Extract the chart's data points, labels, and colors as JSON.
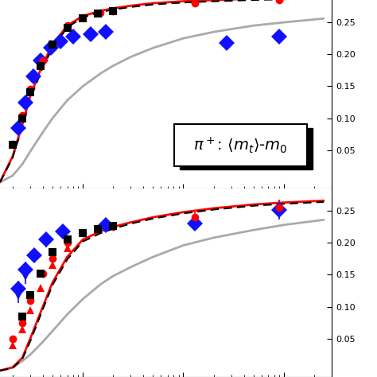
{
  "fig_width": 4.74,
  "fig_height": 4.74,
  "dpi": 100,
  "bg_color": "#ffffff",
  "top_panel": {
    "xmin": 1.5,
    "xmax": 3000,
    "ymin": -0.01,
    "ymax": 0.285,
    "gray_curve": {
      "x": [
        1.5,
        2.0,
        2.5,
        3.0,
        4.0,
        5.0,
        7.0,
        10.0,
        15.0,
        20.0,
        30.0,
        50.0,
        100.0,
        200.0,
        500.0,
        1000.0,
        2500.0
      ],
      "y": [
        0.0,
        0.01,
        0.028,
        0.048,
        0.078,
        0.1,
        0.128,
        0.15,
        0.17,
        0.182,
        0.196,
        0.21,
        0.225,
        0.235,
        0.245,
        0.25,
        0.256
      ]
    },
    "red_curve": {
      "x": [
        1.5,
        2.0,
        2.5,
        3.0,
        4.0,
        5.0,
        7.0,
        10.0,
        15.0,
        20.0,
        30.0,
        50.0,
        100.0,
        200.0,
        500.0,
        1000.0,
        2500.0
      ],
      "y": [
        0.0,
        0.04,
        0.09,
        0.135,
        0.185,
        0.215,
        0.245,
        0.26,
        0.268,
        0.272,
        0.276,
        0.28,
        0.283,
        0.285,
        0.287,
        0.288,
        0.29
      ]
    },
    "black_dashed_curve": {
      "x": [
        1.5,
        2.0,
        2.5,
        3.0,
        4.0,
        5.0,
        7.0,
        10.0,
        15.0,
        20.0,
        30.0,
        50.0,
        100.0,
        200.0,
        500.0,
        1000.0,
        2500.0
      ],
      "y": [
        0.0,
        0.038,
        0.086,
        0.13,
        0.18,
        0.21,
        0.242,
        0.258,
        0.266,
        0.27,
        0.274,
        0.278,
        0.281,
        0.283,
        0.285,
        0.286,
        0.288
      ]
    },
    "blue_diamonds": {
      "x": [
        2.3,
        2.7,
        3.2,
        3.8,
        4.8,
        6.0,
        8.0,
        12.0,
        17.0,
        270.0,
        900.0
      ],
      "y": [
        0.085,
        0.125,
        0.165,
        0.19,
        0.21,
        0.22,
        0.228,
        0.232,
        0.235,
        0.218,
        0.228
      ],
      "yerr": [
        0.0,
        0.0,
        0.0,
        0.0,
        0.0,
        0.0,
        0.0,
        0.0,
        0.0,
        0.01,
        0.01
      ]
    },
    "red_circles": {
      "x": [
        2.0,
        2.5,
        3.0,
        4.0,
        5.0,
        7.0,
        10.0,
        15.0,
        20.0,
        130.0,
        900.0
      ],
      "y": [
        0.06,
        0.105,
        0.145,
        0.19,
        0.215,
        0.245,
        0.258,
        0.265,
        0.268,
        0.28,
        0.285
      ],
      "yerr": [
        0.0,
        0.0,
        0.0,
        0.0,
        0.0,
        0.0,
        0.0,
        0.0,
        0.0,
        0.0,
        0.0
      ]
    },
    "black_squares": {
      "x": [
        2.0,
        2.5,
        3.0,
        3.8,
        5.0,
        7.0,
        10.0,
        14.0,
        20.0
      ],
      "y": [
        0.058,
        0.1,
        0.14,
        0.182,
        0.215,
        0.242,
        0.256,
        0.264,
        0.268
      ],
      "yerr": [
        0.0,
        0.0,
        0.0,
        0.0,
        0.0,
        0.0,
        0.0,
        0.0,
        0.0
      ]
    }
  },
  "bottom_panel": {
    "xmin": 1.5,
    "xmax": 3000,
    "ymin": -0.01,
    "ymax": 0.285,
    "gray_curve": {
      "x": [
        1.5,
        2.0,
        2.5,
        3.0,
        4.0,
        5.0,
        7.0,
        10.0,
        15.0,
        20.0,
        30.0,
        50.0,
        100.0,
        200.0,
        500.0,
        1000.0,
        2500.0
      ],
      "y": [
        0.0,
        0.005,
        0.015,
        0.025,
        0.045,
        0.062,
        0.088,
        0.112,
        0.135,
        0.148,
        0.162,
        0.178,
        0.196,
        0.208,
        0.22,
        0.228,
        0.236
      ]
    },
    "red_curve": {
      "x": [
        1.5,
        2.0,
        2.5,
        3.0,
        4.0,
        5.0,
        7.0,
        10.0,
        15.0,
        20.0,
        30.0,
        50.0,
        100.0,
        200.0,
        500.0,
        1000.0,
        2500.0
      ],
      "y": [
        0.0,
        0.005,
        0.02,
        0.05,
        0.1,
        0.138,
        0.178,
        0.205,
        0.218,
        0.225,
        0.232,
        0.24,
        0.248,
        0.254,
        0.26,
        0.263,
        0.266
      ]
    },
    "black_dashed_curve": {
      "x": [
        1.5,
        2.0,
        2.5,
        3.0,
        4.0,
        5.0,
        7.0,
        10.0,
        15.0,
        20.0,
        30.0,
        50.0,
        100.0,
        200.0,
        500.0,
        1000.0,
        2500.0
      ],
      "y": [
        0.0,
        0.004,
        0.018,
        0.046,
        0.096,
        0.134,
        0.174,
        0.202,
        0.215,
        0.222,
        0.23,
        0.238,
        0.246,
        0.252,
        0.258,
        0.261,
        0.264
      ]
    },
    "blue_diamonds": {
      "x": [
        2.3,
        2.7,
        3.3,
        4.3,
        6.3,
        17.0,
        130.0,
        900.0
      ],
      "y": [
        0.128,
        0.158,
        0.18,
        0.205,
        0.218,
        0.228,
        0.23,
        0.252
      ],
      "yerr": [
        0.012,
        0.012,
        0.0,
        0.012,
        0.01,
        0.01,
        0.01,
        0.015
      ]
    },
    "red_circles": {
      "x": [
        2.0,
        2.5,
        3.0,
        4.0,
        5.0,
        7.0,
        10.0,
        20.0,
        130.0,
        900.0
      ],
      "y": [
        0.05,
        0.075,
        0.11,
        0.152,
        0.175,
        0.2,
        0.215,
        0.225,
        0.24,
        0.255
      ],
      "yerr": [
        0.0,
        0.0,
        0.0,
        0.0,
        0.0,
        0.0,
        0.0,
        0.0,
        0.01,
        0.012
      ]
    },
    "black_squares": {
      "x": [
        2.5,
        3.0,
        3.8,
        5.0,
        7.0,
        10.0,
        14.0,
        20.0
      ],
      "y": [
        0.085,
        0.118,
        0.152,
        0.185,
        0.205,
        0.215,
        0.222,
        0.226
      ],
      "yerr": [
        0.0,
        0.0,
        0.0,
        0.0,
        0.0,
        0.0,
        0.0,
        0.0
      ]
    },
    "red_triangles": {
      "x": [
        2.0,
        2.5,
        3.0,
        3.8,
        5.0,
        7.0
      ],
      "y": [
        0.04,
        0.065,
        0.095,
        0.13,
        0.165,
        0.192
      ],
      "yerr": [
        0.0,
        0.0,
        0.0,
        0.0,
        0.0,
        0.0
      ]
    },
    "blue_triangles_down": {
      "x": [
        2.3,
        2.7
      ],
      "y": [
        0.118,
        0.148
      ],
      "yerr": [
        0.012,
        0.012
      ]
    }
  },
  "yticks": [
    0.05,
    0.1,
    0.15,
    0.2,
    0.25
  ],
  "colors": {
    "gray": "#aaaaaa",
    "red": "#ff0000",
    "black": "#000000",
    "blue": "#1010ff"
  }
}
